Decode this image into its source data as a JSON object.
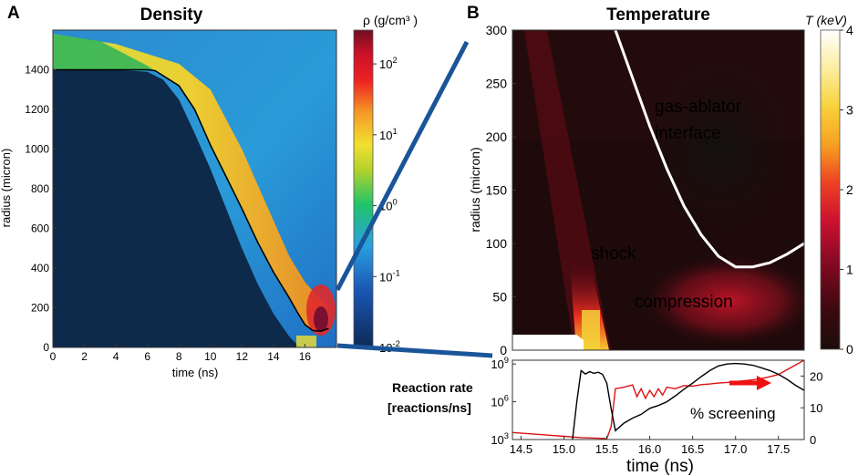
{
  "colors": {
    "density_background": "#0b2543",
    "density_core": "#0d2a4a",
    "temperature_background": "#1e0a0a",
    "callout_lines": "#1a5599",
    "curve_white": "#ffffff",
    "series_black": "#000000",
    "series_red": "#dd1111"
  },
  "chart_data": [
    {
      "id": "A",
      "type": "heatmap",
      "panel_letter": "A",
      "title": "Density",
      "xlabel": "time (ns)",
      "ylabel": "radius (micron)",
      "xlim": [
        0,
        18
      ],
      "ylim": [
        0,
        1600
      ],
      "x_ticks": [
        "0",
        "2",
        "4",
        "6",
        "8",
        "10",
        "12",
        "14",
        "16"
      ],
      "x_tick_values": [
        0,
        2,
        4,
        6,
        8,
        10,
        12,
        14,
        16
      ],
      "y_ticks": [
        "0",
        "200",
        "400",
        "600",
        "800",
        "1000",
        "1200",
        "1400"
      ],
      "y_tick_values": [
        0,
        200,
        400,
        600,
        800,
        1000,
        1200,
        1400
      ],
      "colorbar": {
        "label": "ρ (g/cm³ )",
        "scale": "log",
        "range": [
          0.01,
          300
        ],
        "tick_labels": [
          "10^2",
          "10^1",
          "10^0",
          "10^-1",
          "10^-2"
        ],
        "tick_values": [
          100,
          10,
          1,
          0.1,
          0.01
        ]
      },
      "ablator_interface": {
        "t": [
          0,
          2,
          4,
          6,
          6.5,
          8,
          9,
          10,
          11,
          12,
          13,
          14,
          15,
          15.5,
          16,
          16.5,
          17,
          17.5
        ],
        "r": [
          1400,
          1400,
          1400,
          1400,
          1395,
          1320,
          1200,
          1020,
          860,
          700,
          530,
          380,
          250,
          180,
          115,
          85,
          82,
          95
        ]
      },
      "fuel_boundary": {
        "t": [
          0,
          4,
          6,
          7,
          8,
          9,
          10,
          11,
          12,
          13,
          14,
          15,
          15.5,
          15.7
        ],
        "r": [
          1400,
          1400,
          1390,
          1350,
          1250,
          1080,
          900,
          700,
          500,
          320,
          170,
          55,
          15,
          0
        ]
      },
      "outer_shell_edge": {
        "t": [
          0,
          4,
          8,
          10,
          12,
          14,
          15,
          16,
          17,
          17.5
        ],
        "r": [
          1580,
          1530,
          1430,
          1300,
          1000,
          640,
          460,
          330,
          240,
          200
        ]
      }
    },
    {
      "id": "B",
      "type": "heatmap",
      "panel_letter": "B",
      "title": "Temperature",
      "ylabel": "radius (micron)",
      "xlim": [
        14.4,
        17.8
      ],
      "ylim": [
        0,
        300
      ],
      "y_ticks": [
        "0",
        "50",
        "100",
        "150",
        "200",
        "250",
        "300"
      ],
      "y_tick_values": [
        0,
        50,
        100,
        150,
        200,
        250,
        300
      ],
      "colorbar": {
        "label": "T (keV)",
        "range": [
          0,
          4
        ],
        "tick_labels": [
          "0",
          "1",
          "2",
          "3",
          "4"
        ],
        "tick_values": [
          0,
          1,
          2,
          3,
          4
        ]
      },
      "annotations": [
        "gas-ablator",
        "interface",
        "shock",
        "compression"
      ],
      "interface_curve": {
        "t": [
          15.6,
          15.8,
          16.0,
          16.2,
          16.4,
          16.6,
          16.8,
          17.0,
          17.2,
          17.4,
          17.6,
          17.8
        ],
        "r": [
          300,
          255,
          210,
          170,
          135,
          108,
          88,
          78,
          78,
          82,
          90,
          100
        ]
      }
    },
    {
      "id": "C",
      "type": "line",
      "left_label_line1": "Reaction rate",
      "left_label_line2": "[reactions/ns]",
      "xlabel": "time (ns)",
      "xlim": [
        14.4,
        17.8
      ],
      "x_ticks": [
        "14.5",
        "15.0",
        "15.5",
        "16.0",
        "16.5",
        "17.0",
        "17.5"
      ],
      "x_tick_values": [
        14.5,
        15.0,
        15.5,
        16.0,
        16.5,
        17.0,
        17.5
      ],
      "y_left_scale": "log",
      "y_left_range": [
        1000,
        2000000000
      ],
      "y_left_ticks": [
        "10^3",
        "10^6",
        "10^9"
      ],
      "y_left_tick_values": [
        1000,
        1000000,
        1000000000
      ],
      "y_right_range": [
        0,
        25
      ],
      "y_right_ticks": [
        "0",
        "10",
        "20"
      ],
      "y_right_tick_values": [
        0,
        10,
        20
      ],
      "annotation": "% screening",
      "series": [
        {
          "name": "reaction rate",
          "axis": "left",
          "color": "#000000",
          "x": [
            15.1,
            15.15,
            15.2,
            15.25,
            15.3,
            15.35,
            15.4,
            15.45,
            15.5,
            15.55,
            15.6,
            15.7,
            15.8,
            15.9,
            16.0,
            16.1,
            16.2,
            16.3,
            16.4,
            16.5,
            16.6,
            16.7,
            16.8,
            16.9,
            17.0,
            17.1,
            17.2,
            17.3,
            17.4,
            17.5,
            17.6,
            17.7,
            17.8
          ],
          "y": [
            1000,
            1000000,
            300000000,
            160000000,
            250000000,
            180000000,
            220000000,
            150000000,
            30000000,
            300000,
            5000,
            20000,
            50000,
            100000,
            300000,
            500000,
            1000000,
            3000000,
            10000000,
            30000000,
            100000000,
            300000000,
            700000000,
            1000000000,
            1100000000,
            1000000000,
            800000000,
            500000000,
            300000000,
            150000000,
            60000000,
            20000000,
            8000000
          ]
        },
        {
          "name": "% screening",
          "axis": "right",
          "color": "#dd1111",
          "x": [
            14.4,
            14.6,
            14.8,
            15.0,
            15.2,
            15.4,
            15.5,
            15.55,
            15.6,
            15.7,
            15.8,
            15.85,
            15.9,
            15.95,
            16.0,
            16.05,
            16.1,
            16.15,
            16.2,
            16.3,
            16.4,
            16.5,
            16.6,
            16.7,
            16.8,
            16.9,
            17.0,
            17.1,
            17.2,
            17.3,
            17.4,
            17.5,
            17.6,
            17.7,
            17.8
          ],
          "y": [
            2.2,
            1.8,
            1.4,
            1.0,
            0.6,
            0.4,
            0.3,
            4,
            16,
            16.5,
            17.2,
            13.5,
            16,
            13,
            15.5,
            13.5,
            16,
            14,
            16.5,
            16,
            17,
            16.8,
            17.3,
            17.5,
            17.8,
            18,
            18.3,
            18.5,
            18.8,
            19.2,
            19.8,
            20.5,
            22,
            23.5,
            25
          ]
        }
      ]
    }
  ]
}
